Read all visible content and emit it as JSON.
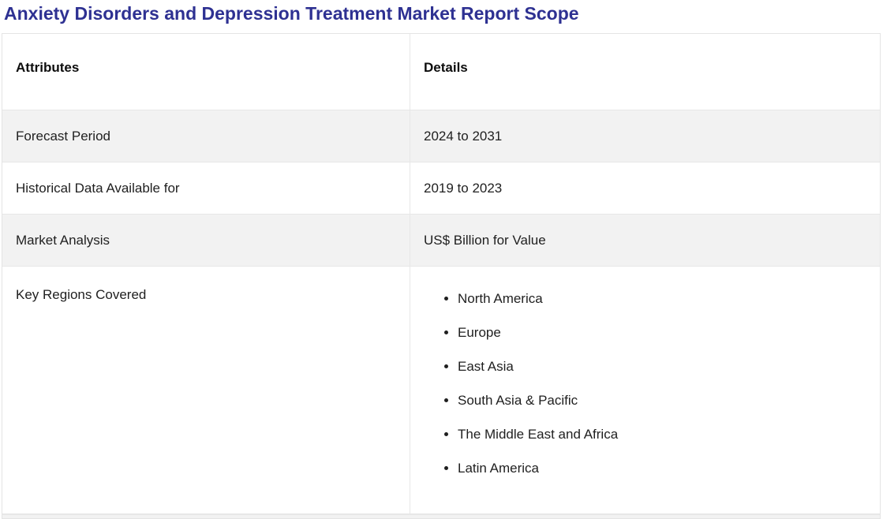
{
  "page": {
    "title": "Anxiety Disorders and Depression Treatment Market Report Scope"
  },
  "table": {
    "headers": {
      "attributes": "Attributes",
      "details": "Details"
    },
    "rows": [
      {
        "attribute": "Forecast Period",
        "details": "2024 to 2031"
      },
      {
        "attribute": "Historical Data Available for",
        "details": "2019 to 2023"
      },
      {
        "attribute": "Market Analysis",
        "details": "US$ Billion for Value"
      },
      {
        "attribute": "Key Regions Covered",
        "details_list": [
          "North America",
          "Europe",
          "East Asia",
          "South Asia & Pacific",
          "The Middle East and Africa",
          "Latin America"
        ]
      }
    ]
  },
  "colors": {
    "title": "#2e3192",
    "row_alt_background": "#f2f2f2",
    "border": "#e7e7e7",
    "text": "#1f1f1f"
  }
}
